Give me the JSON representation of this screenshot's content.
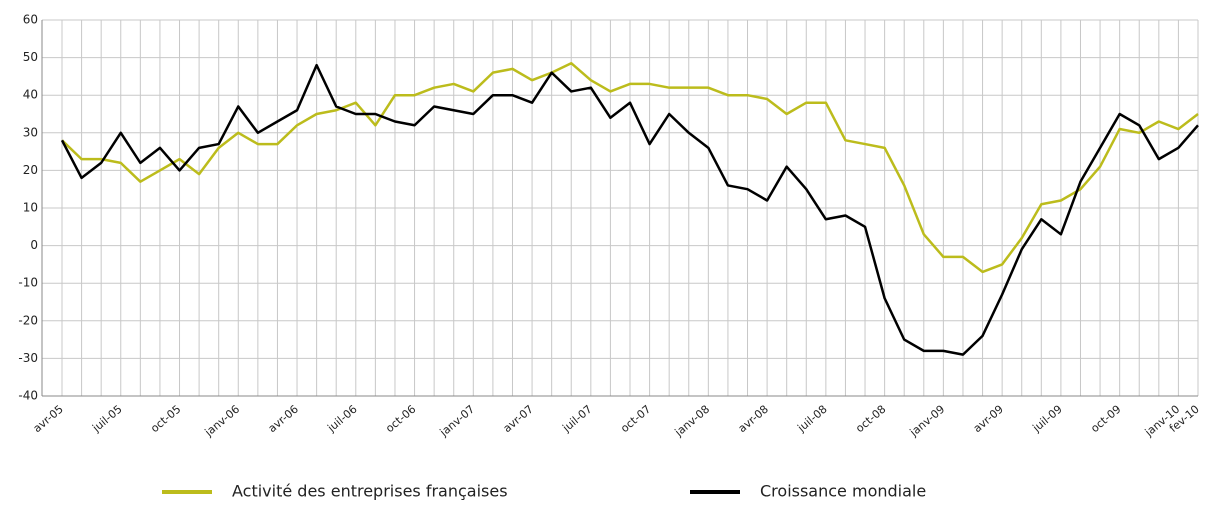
{
  "chart_data": {
    "type": "line",
    "categories": [
      "avr-05",
      null,
      null,
      "juil-05",
      null,
      null,
      "oct-05",
      null,
      null,
      "janv-06",
      null,
      null,
      "avr-06",
      null,
      null,
      "juil-06",
      null,
      null,
      "oct-06",
      null,
      null,
      "janv-07",
      null,
      null,
      "avr-07",
      null,
      null,
      "juil-07",
      null,
      null,
      "oct-07",
      null,
      null,
      "janv-08",
      null,
      null,
      "avr-08",
      null,
      null,
      "juil-08",
      null,
      null,
      "oct-08",
      null,
      null,
      "janv-09",
      null,
      null,
      "avr-09",
      null,
      null,
      "juil-09",
      null,
      null,
      "oct-09",
      null,
      null,
      "janv-10",
      "fev-10"
    ],
    "series": [
      {
        "name": "Activité des entreprises françaises",
        "color": "#bcbc1c",
        "values": [
          28,
          23,
          23,
          22,
          17,
          20,
          23,
          19,
          26,
          30,
          27,
          27,
          32,
          35,
          36,
          38,
          32,
          40,
          40,
          42,
          43,
          41,
          46,
          47,
          44,
          46,
          48.5,
          44,
          41,
          43,
          43,
          42,
          42,
          42,
          40,
          40,
          39,
          35,
          38,
          38,
          28,
          27,
          26,
          16,
          3,
          -3,
          -3,
          -7,
          -5,
          2,
          11,
          12,
          15,
          21,
          31,
          30,
          33,
          31,
          35
        ]
      },
      {
        "name": "Croissance mondiale",
        "color": "#000000",
        "values": [
          28,
          18,
          22,
          30,
          22,
          26,
          20,
          26,
          27,
          37,
          30,
          33,
          36,
          48,
          37,
          35,
          35,
          33,
          32,
          37,
          36,
          35,
          40,
          40,
          38,
          46,
          41,
          42,
          34,
          38,
          27,
          35,
          30,
          26,
          16,
          15,
          12,
          21,
          15,
          7,
          8,
          5,
          -14,
          -25,
          -28,
          -28,
          -29,
          -24,
          -13,
          -1,
          7,
          3,
          17,
          26,
          35,
          32,
          23,
          26,
          32
        ]
      }
    ],
    "ylim": [
      -40,
      60
    ],
    "yticks": [
      -40,
      -30,
      -20,
      -10,
      0,
      10,
      20,
      30,
      40,
      50,
      60
    ],
    "grid": true
  }
}
